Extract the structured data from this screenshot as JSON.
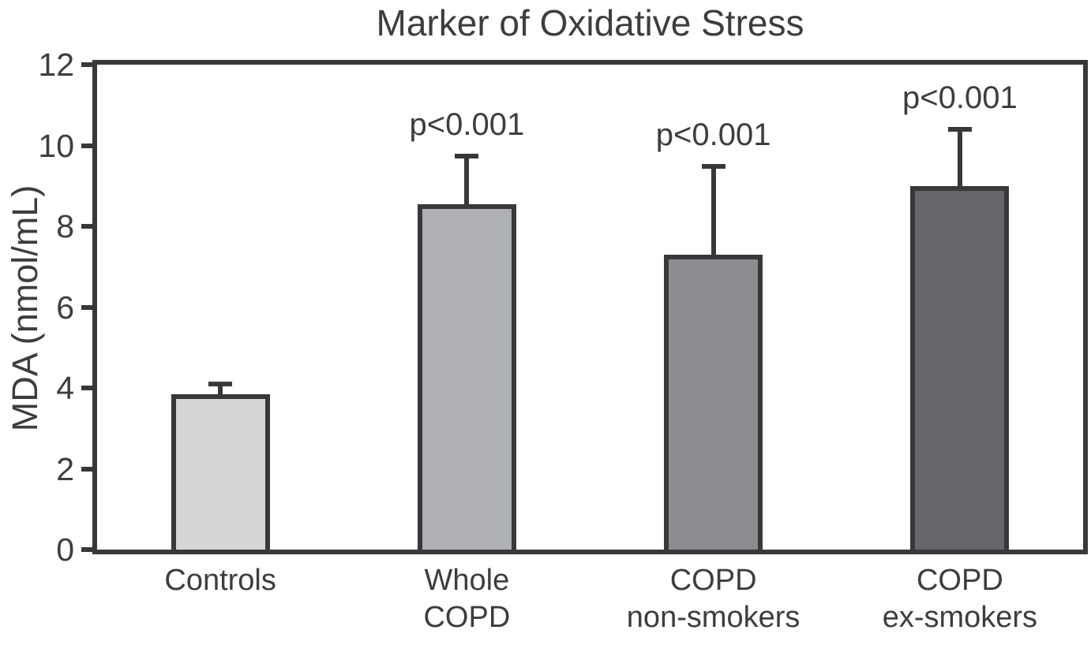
{
  "chart_data": {
    "type": "bar",
    "title": "Marker of Oxidative Stress",
    "xlabel": "",
    "ylabel": "MDA (nmol/mL)",
    "ylim": [
      0,
      12
    ],
    "yticks": [
      0,
      2,
      4,
      6,
      8,
      10,
      12
    ],
    "grid": false,
    "legend": null,
    "categories": [
      [
        "Controls"
      ],
      [
        "Whole",
        "COPD"
      ],
      [
        "COPD",
        "non-smokers"
      ],
      [
        "COPD",
        "ex-smokers"
      ]
    ],
    "series": [
      {
        "name": "MDA",
        "values": [
          3.85,
          8.55,
          7.3,
          9.0
        ],
        "error_upper": [
          4.15,
          9.8,
          9.55,
          10.45
        ]
      }
    ],
    "annotations": [
      "",
      "p<0.001",
      "p<0.001",
      "p<0.001"
    ],
    "bar_colors": [
      "#d5d6d8",
      "#aeb0b3",
      "#8a8c8f",
      "#646669"
    ],
    "edge_color": "#38383a",
    "text_color": "#3d3d3f",
    "background_color": "#ffffff"
  }
}
